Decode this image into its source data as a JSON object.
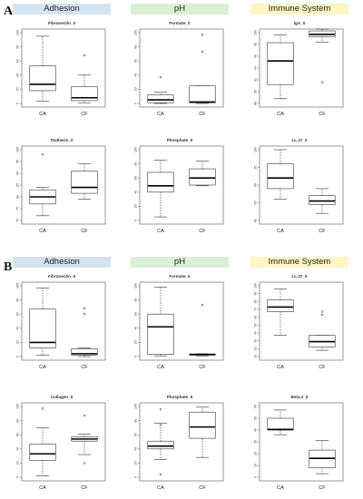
{
  "panels": [
    {
      "letter": "A",
      "headers": [
        {
          "label": "Adhesion",
          "color": "#d6e4f2"
        },
        {
          "label": "pH",
          "color": "#dcefd6"
        },
        {
          "label": "Immune System",
          "color": "#fdf6c6"
        }
      ]
    },
    {
      "letter": "B",
      "headers": [
        {
          "label": "Adhesion",
          "color": "#d6e4f2"
        },
        {
          "label": "pH",
          "color": "#dcefd6"
        },
        {
          "label": "Immune System",
          "color": "#fdf6c6"
        }
      ]
    }
  ],
  "chart_data": [
    {
      "type": "boxplot",
      "title": "Fibronectin_0",
      "categories": [
        "CA",
        "CF"
      ],
      "ylim": [
        0,
        100
      ],
      "yticks": [
        0,
        20,
        40,
        60,
        80,
        100
      ],
      "boxes": [
        {
          "category": "CA",
          "whisker_low": 3,
          "q1": 18,
          "median": 27,
          "q3": 53,
          "whisker_high": 95,
          "outliers": []
        },
        {
          "category": "CF",
          "whisker_low": 1,
          "q1": 4,
          "median": 8,
          "q3": 24,
          "whisker_high": 40,
          "outliers": [
            68
          ]
        }
      ]
    },
    {
      "type": "boxplot",
      "title": "Formate_0",
      "categories": [
        "CA",
        "CF"
      ],
      "ylim": [
        0,
        100
      ],
      "yticks": [
        0,
        20,
        40,
        60,
        80,
        100
      ],
      "boxes": [
        {
          "category": "CA",
          "whisker_low": 0,
          "q1": 1,
          "median": 5,
          "q3": 12,
          "whisker_high": 16,
          "outliers": [
            37
          ]
        },
        {
          "category": "CF",
          "whisker_low": 0,
          "q1": 1,
          "median": 2,
          "q3": 25,
          "whisker_high": 25,
          "outliers": [
            73,
            97
          ]
        }
      ]
    },
    {
      "type": "boxplot",
      "title": "IgA_0",
      "categories": [
        "CA",
        "CF"
      ],
      "ylim": [
        88,
        100
      ],
      "yticks": [
        88,
        90,
        92,
        94,
        96,
        98,
        100
      ],
      "boxes": [
        {
          "category": "CA",
          "whisker_low": 88.8,
          "q1": 91.2,
          "median": 95.2,
          "q3": 98.3,
          "whisker_high": 99.6,
          "outliers": []
        },
        {
          "category": "CF",
          "whisker_low": 98.4,
          "q1": 99.3,
          "median": 99.7,
          "q3": 100.3,
          "whisker_high": 100.6,
          "outliers": [
            91.6
          ]
        }
      ]
    },
    {
      "type": "boxplot",
      "title": "Statherin_0",
      "categories": [
        "CA",
        "CF"
      ],
      "ylim": [
        70,
        100
      ],
      "yticks": [
        70,
        75,
        80,
        85,
        90,
        95,
        100
      ],
      "boxes": [
        {
          "category": "CA",
          "whisker_low": 72,
          "q1": 77,
          "median": 80,
          "q3": 83,
          "whisker_high": 84,
          "outliers": [
            98
          ]
        },
        {
          "category": "CF",
          "whisker_low": 79,
          "q1": 81.5,
          "median": 84,
          "q3": 91,
          "whisker_high": 94,
          "outliers": []
        }
      ]
    },
    {
      "type": "boxplot",
      "title": "Phosphate_0",
      "categories": [
        "CA",
        "CF"
      ],
      "ylim": [
        0,
        100
      ],
      "yticks": [
        0,
        20,
        40,
        60,
        80,
        100
      ],
      "boxes": [
        {
          "category": "CA",
          "whisker_low": 5,
          "q1": 40,
          "median": 49,
          "q3": 68,
          "whisker_high": 85,
          "outliers": []
        },
        {
          "category": "CF",
          "whisker_low": 49,
          "q1": 50,
          "median": 60,
          "q3": 73,
          "whisker_high": 84,
          "outliers": []
        }
      ]
    },
    {
      "type": "boxplot",
      "title": "LL.37_0",
      "categories": [
        "CA",
        "CF"
      ],
      "ylim": [
        80,
        100
      ],
      "yticks": [
        80,
        85,
        90,
        95,
        100
      ],
      "boxes": [
        {
          "category": "CA",
          "whisker_low": 86,
          "q1": 89,
          "median": 92,
          "q3": 96,
          "whisker_high": 100,
          "outliers": []
        },
        {
          "category": "CF",
          "whisker_low": 82,
          "q1": 84.5,
          "median": 85.5,
          "q3": 87,
          "whisker_high": 89,
          "outliers": []
        }
      ]
    },
    {
      "type": "boxplot",
      "title": "Fibronectin_6",
      "categories": [
        "CA",
        "CF"
      ],
      "ylim": [
        0,
        100
      ],
      "yticks": [
        0,
        20,
        40,
        60,
        80,
        100
      ],
      "boxes": [
        {
          "category": "CA",
          "whisker_low": 2,
          "q1": 12,
          "median": 20,
          "q3": 67,
          "whisker_high": 97,
          "outliers": []
        },
        {
          "category": "CF",
          "whisker_low": 0,
          "q1": 2,
          "median": 4,
          "q3": 11,
          "whisker_high": 12,
          "outliers": [
            60,
            68
          ]
        }
      ]
    },
    {
      "type": "boxplot",
      "title": "Formate_6",
      "categories": [
        "CA",
        "CF"
      ],
      "ylim": [
        0,
        100
      ],
      "yticks": [
        0,
        20,
        40,
        60,
        80,
        100
      ],
      "boxes": [
        {
          "category": "CA",
          "whisker_low": 1,
          "q1": 3,
          "median": 42,
          "q3": 60,
          "whisker_high": 98,
          "outliers": []
        },
        {
          "category": "CF",
          "whisker_low": 1,
          "q1": 2,
          "median": 3,
          "q3": 3.5,
          "whisker_high": 4,
          "outliers": [
            73
          ]
        }
      ]
    },
    {
      "type": "boxplot",
      "title": "LL.37_6",
      "categories": [
        "CA",
        "CF"
      ],
      "ylim": [
        10,
        100
      ],
      "yticks": [
        10,
        20,
        30,
        40,
        50,
        60,
        70,
        80,
        90,
        100
      ],
      "boxes": [
        {
          "category": "CA",
          "whisker_low": 37,
          "q1": 67,
          "median": 73,
          "q3": 82,
          "whisker_high": 96,
          "outliers": []
        },
        {
          "category": "CF",
          "whisker_low": 18,
          "q1": 22,
          "median": 29,
          "q3": 37,
          "whisker_high": 37,
          "outliers": [
            63,
            67
          ]
        }
      ]
    },
    {
      "type": "boxplot",
      "title": "Collagen_6",
      "categories": [
        "CA",
        "CF"
      ],
      "ylim": [
        0,
        100
      ],
      "yticks": [
        0,
        20,
        40,
        60,
        80,
        100
      ],
      "boxes": [
        {
          "category": "CA",
          "whisker_low": 2,
          "q1": 24,
          "median": 33,
          "q3": 47,
          "whisker_high": 70,
          "outliers": [
            97
          ]
        },
        {
          "category": "CF",
          "whisker_low": 32,
          "q1": 51,
          "median": 54,
          "q3": 57,
          "whisker_high": 61,
          "outliers": [
            20,
            87
          ]
        }
      ]
    },
    {
      "type": "boxplot",
      "title": "Phosphate_6",
      "categories": [
        "CA",
        "CF"
      ],
      "ylim": [
        0,
        100
      ],
      "yticks": [
        0,
        20,
        40,
        60,
        80,
        100
      ],
      "boxes": [
        {
          "category": "CA",
          "whisker_low": 25,
          "q1": 40,
          "median": 44,
          "q3": 51,
          "whisker_high": 76,
          "outliers": [
            4,
            75,
            96
          ]
        },
        {
          "category": "CF",
          "whisker_low": 28,
          "q1": 55,
          "median": 71,
          "q3": 92,
          "whisker_high": 99,
          "outliers": []
        }
      ]
    },
    {
      "type": "boxplot",
      "title": "Beta.2_6",
      "categories": [
        "CA",
        "CF"
      ],
      "ylim": [
        0,
        60
      ],
      "yticks": [
        0,
        10,
        20,
        30,
        40,
        50,
        60
      ],
      "boxes": [
        {
          "category": "CA",
          "whisker_low": 36,
          "q1": 40,
          "median": 40.5,
          "q3": 50,
          "whisker_high": 57,
          "outliers": []
        },
        {
          "category": "CF",
          "whisker_low": 3,
          "q1": 8,
          "median": 16,
          "q3": 23,
          "whisker_high": 31,
          "outliers": []
        }
      ]
    }
  ]
}
